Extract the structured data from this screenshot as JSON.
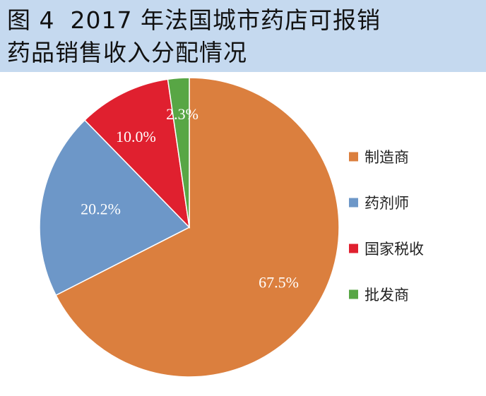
{
  "title": {
    "line1_prefix": "图 4",
    "line1_rest": "2017 年法国城市药店可报销",
    "line2": "药品销售收入分配情况"
  },
  "chart_data": {
    "type": "pie",
    "title": "图 4 2017 年法国城市药店可报销药品销售收入分配情况",
    "start_angle_deg": 0,
    "direction": "clockwise",
    "legend_position": "right",
    "slices": [
      {
        "name": "制造商",
        "value": 67.5,
        "label": "67.5%",
        "color": "#db7f3e"
      },
      {
        "name": "药剂师",
        "value": 20.2,
        "label": "20.2%",
        "color": "#6d97c8"
      },
      {
        "name": "国家税收",
        "value": 10.0,
        "label": "10.0%",
        "color": "#e0202f"
      },
      {
        "name": "批发商",
        "value": 2.3,
        "label": "2.3%",
        "color": "#58a645"
      }
    ]
  }
}
